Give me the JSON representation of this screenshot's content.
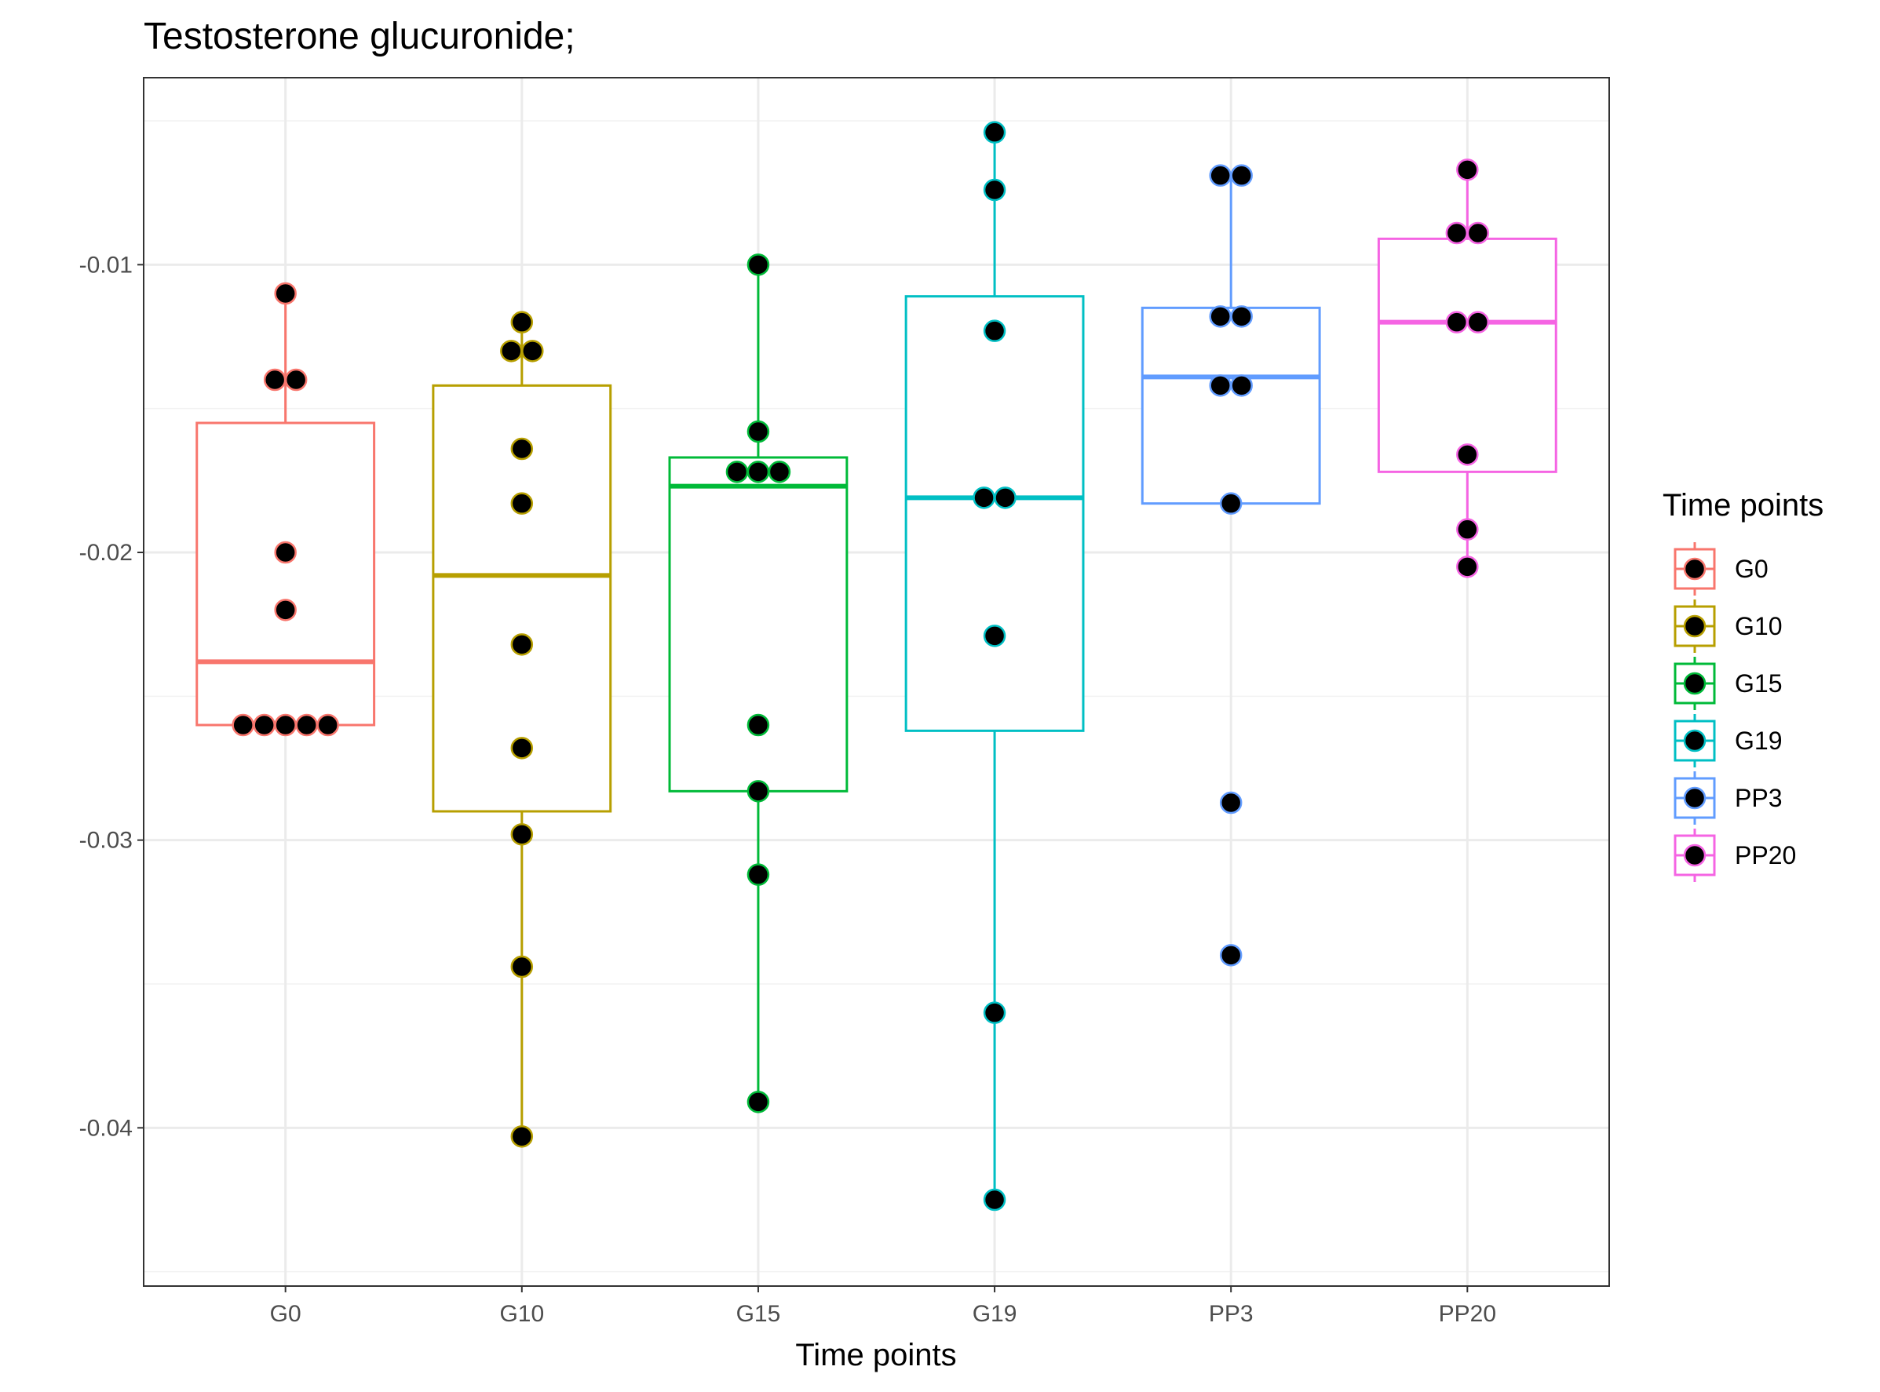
{
  "chart_data": {
    "type": "box",
    "title": "Testosterone glucuronide;",
    "xlabel": "Time points",
    "ylabel": "",
    "categories": [
      "G0",
      "G10",
      "G15",
      "G19",
      "PP3",
      "PP20"
    ],
    "ylim": [
      -0.0455,
      -0.0035
    ],
    "yticks": [
      -0.01,
      -0.02,
      -0.03,
      -0.04
    ],
    "ytick_labels": [
      "-0.01",
      "-0.02",
      "-0.03",
      "-0.04"
    ],
    "grid": true,
    "legend": {
      "title": "Time points",
      "placement": "right",
      "entries": [
        "G0",
        "G10",
        "G15",
        "G19",
        "PP3",
        "PP20"
      ]
    },
    "colors": {
      "G0": "#F8766D",
      "G10": "#B79F00",
      "G15": "#00BA38",
      "G19": "#00BFC4",
      "PP3": "#619CFF",
      "PP20": "#F564E3",
      "point_fill": "#000000"
    },
    "boxes": [
      {
        "category": "G0",
        "whisker_low": -0.026,
        "q1": -0.026,
        "median": -0.0238,
        "q3": -0.0155,
        "whisker_high": -0.011
      },
      {
        "category": "G10",
        "whisker_low": -0.0403,
        "q1": -0.029,
        "median": -0.0208,
        "q3": -0.0142,
        "whisker_high": -0.012
      },
      {
        "category": "G15",
        "whisker_low": -0.0391,
        "q1": -0.0283,
        "median": -0.0177,
        "q3": -0.0167,
        "whisker_high": -0.01
      },
      {
        "category": "G19",
        "whisker_low": -0.0425,
        "q1": -0.0262,
        "median": -0.0181,
        "q3": -0.0111,
        "whisker_high": -0.0054
      },
      {
        "category": "PP3",
        "whisker_low": -0.0183,
        "q1": -0.0183,
        "median": -0.0139,
        "q3": -0.0115,
        "whisker_high": -0.0069
      },
      {
        "category": "PP20",
        "whisker_low": -0.0205,
        "q1": -0.0172,
        "median": -0.012,
        "q3": -0.0091,
        "whisker_high": -0.0067
      }
    ],
    "points": [
      {
        "category": "G0",
        "values": [
          -0.011,
          -0.014,
          -0.014,
          -0.02,
          -0.022,
          -0.026,
          -0.026,
          -0.026,
          -0.026,
          -0.026
        ]
      },
      {
        "category": "G10",
        "values": [
          -0.012,
          -0.013,
          -0.013,
          -0.0164,
          -0.0183,
          -0.0232,
          -0.0268,
          -0.0298,
          -0.0344,
          -0.0403
        ]
      },
      {
        "category": "G15",
        "values": [
          -0.01,
          -0.0158,
          -0.0172,
          -0.0172,
          -0.0172,
          -0.026,
          -0.0283,
          -0.0312,
          -0.0391
        ]
      },
      {
        "category": "G19",
        "values": [
          -0.0054,
          -0.0074,
          -0.0123,
          -0.0181,
          -0.0181,
          -0.0229,
          -0.036,
          -0.0425
        ]
      },
      {
        "category": "PP3",
        "values": [
          -0.0069,
          -0.0069,
          -0.0118,
          -0.0118,
          -0.0142,
          -0.0142,
          -0.0183,
          -0.0287,
          -0.034
        ]
      },
      {
        "category": "PP20",
        "values": [
          -0.0067,
          -0.0089,
          -0.0089,
          -0.012,
          -0.012,
          -0.0166,
          -0.0192,
          -0.0205
        ]
      }
    ]
  }
}
